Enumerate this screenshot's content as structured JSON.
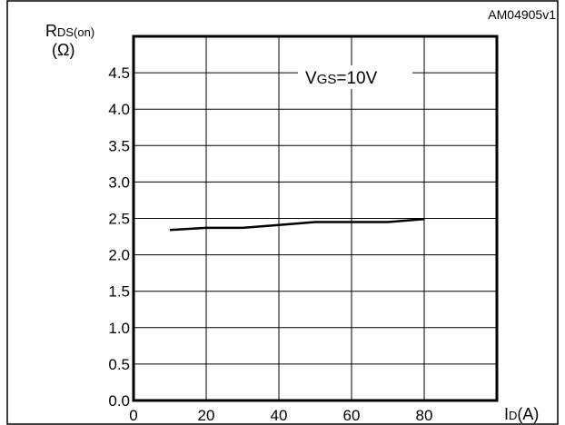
{
  "chart_data": {
    "type": "line",
    "ref_code": "AM04905v1",
    "ylabel": {
      "main": "R",
      "sub": "DS(on)",
      "unit": "(Ω)"
    },
    "xlabel": {
      "main": "I",
      "sub": "D",
      "unit": "(A)"
    },
    "xlim": [
      0,
      100
    ],
    "ylim": [
      0,
      5
    ],
    "x_ticks": [
      0,
      20,
      40,
      60,
      80
    ],
    "x_tick_labels": [
      "0",
      "20",
      "40",
      "60",
      "80"
    ],
    "y_ticks": [
      0,
      0.5,
      1.0,
      1.5,
      2.0,
      2.5,
      3.0,
      3.5,
      4.0,
      4.5
    ],
    "y_tick_labels": [
      "0.0",
      "0.5",
      "1.0",
      "1.5",
      "2.0",
      "2.5",
      "3.0",
      "3.5",
      "4.0",
      "4.5"
    ],
    "grid": true,
    "annotation": {
      "main": "V",
      "sub": "GS",
      "rest": "=10V"
    },
    "series": [
      {
        "x": [
          10,
          20,
          30,
          40,
          50,
          60,
          70,
          80
        ],
        "y": [
          2.34,
          2.37,
          2.37,
          2.41,
          2.45,
          2.45,
          2.45,
          2.49
        ]
      }
    ]
  }
}
